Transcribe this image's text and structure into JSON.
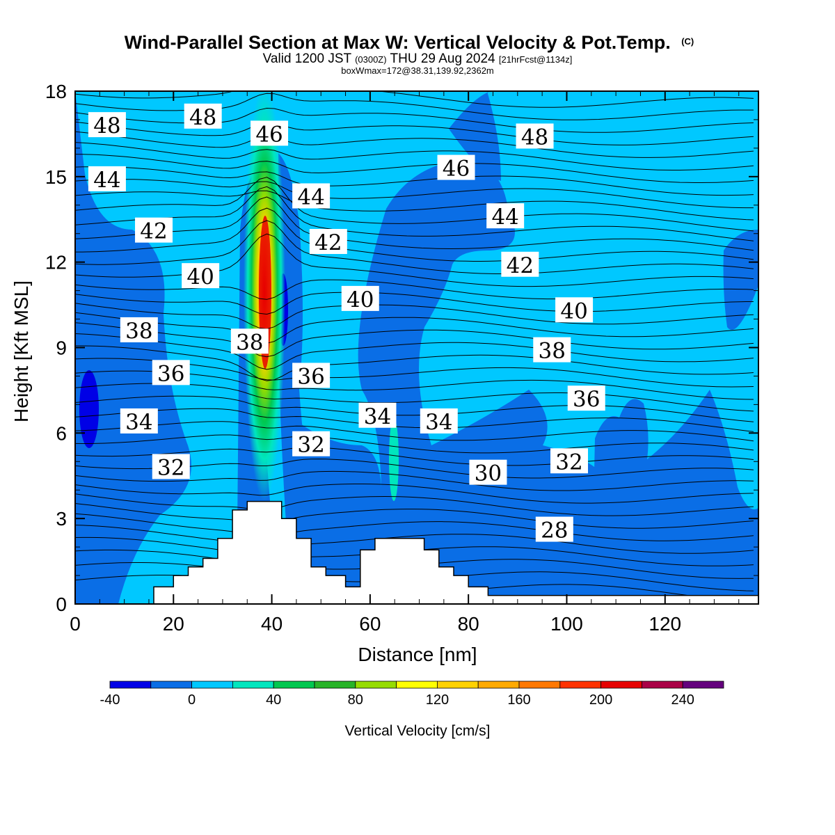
{
  "chart_data": {
    "type": "heatmap",
    "title": "Wind-Parallel Section at Max W: Vertical Velocity & Pot.Temp.",
    "title_mark": "(C)",
    "subtitle_parts": [
      "Valid 1200 JST",
      "(0300Z)",
      "THU 29 Aug 2024",
      "[21hrFcst@1134z]"
    ],
    "info": "boxWmax=172@38.31,139.92,2362m",
    "xlabel": "Distance [nm]",
    "ylabel": "Height [Kft MSL]",
    "xlim": [
      0,
      139
    ],
    "ylim": [
      0,
      18
    ],
    "xticks": [
      0,
      20,
      40,
      60,
      80,
      100,
      120
    ],
    "yticks": [
      0,
      3,
      6,
      9,
      12,
      15,
      18
    ],
    "colorbar": {
      "label": "Vertical Velocity [cm/s]",
      "levels": [
        -40,
        -20,
        0,
        20,
        40,
        60,
        80,
        100,
        120,
        140,
        160,
        180,
        200,
        220,
        240,
        260
      ],
      "colors": [
        "#0000e6",
        "#0a6ee6",
        "#00c8ff",
        "#00e6be",
        "#00c850",
        "#28b428",
        "#96dc00",
        "#ffff00",
        "#ffd200",
        "#ffaa00",
        "#ff7800",
        "#ff3200",
        "#e60000",
        "#aa0046",
        "#64007d"
      ],
      "tick_labels": [
        -40,
        0,
        40,
        80,
        120,
        160,
        200,
        240
      ]
    },
    "terrain": [
      [
        0,
        0
      ],
      [
        16,
        0
      ],
      [
        16,
        0.6
      ],
      [
        20,
        0.6
      ],
      [
        20,
        1
      ],
      [
        23,
        1
      ],
      [
        23,
        1.3
      ],
      [
        26,
        1.3
      ],
      [
        26,
        1.6
      ],
      [
        29,
        1.6
      ],
      [
        29,
        2.3
      ],
      [
        32,
        2.3
      ],
      [
        32,
        3.3
      ],
      [
        35,
        3.3
      ],
      [
        35,
        3.6
      ],
      [
        42,
        3.6
      ],
      [
        42,
        3
      ],
      [
        45,
        3
      ],
      [
        45,
        2.3
      ],
      [
        48,
        2.3
      ],
      [
        48,
        1.3
      ],
      [
        51,
        1.3
      ],
      [
        51,
        1
      ],
      [
        55,
        1
      ],
      [
        55,
        0.6
      ],
      [
        58,
        0.6
      ],
      [
        58,
        1.9
      ],
      [
        61,
        1.9
      ],
      [
        61,
        2.3
      ],
      [
        71,
        2.3
      ],
      [
        71,
        1.9
      ],
      [
        74,
        1.9
      ],
      [
        74,
        1.3
      ],
      [
        77,
        1.3
      ],
      [
        77,
        1
      ],
      [
        80,
        1
      ],
      [
        80,
        0.6
      ],
      [
        84,
        0.6
      ],
      [
        84,
        0.3
      ],
      [
        139,
        0.3
      ],
      [
        139,
        0
      ]
    ],
    "theta_contours": {
      "units": "Pot.Temp.",
      "labels": [
        {
          "text": "48",
          "x": 6.5,
          "y": 16.8
        },
        {
          "text": "48",
          "x": 26,
          "y": 17.1
        },
        {
          "text": "46",
          "x": 39.5,
          "y": 16.5
        },
        {
          "text": "48",
          "x": 93.5,
          "y": 16.4
        },
        {
          "text": "44",
          "x": 6.5,
          "y": 14.9
        },
        {
          "text": "44",
          "x": 48,
          "y": 14.3
        },
        {
          "text": "46",
          "x": 77.5,
          "y": 15.3
        },
        {
          "text": "42",
          "x": 16,
          "y": 13.1
        },
        {
          "text": "44",
          "x": 87.5,
          "y": 13.6
        },
        {
          "text": "42",
          "x": 51.5,
          "y": 12.7
        },
        {
          "text": "42",
          "x": 90.5,
          "y": 11.9
        },
        {
          "text": "40",
          "x": 25.5,
          "y": 11.5
        },
        {
          "text": "40",
          "x": 58,
          "y": 10.7
        },
        {
          "text": "40",
          "x": 101.5,
          "y": 10.3
        },
        {
          "text": "38",
          "x": 13,
          "y": 9.6
        },
        {
          "text": "38",
          "x": 35.5,
          "y": 9.2
        },
        {
          "text": "38",
          "x": 97,
          "y": 8.9
        },
        {
          "text": "36",
          "x": 19.5,
          "y": 8.1
        },
        {
          "text": "36",
          "x": 48,
          "y": 8.0
        },
        {
          "text": "36",
          "x": 104,
          "y": 7.2
        },
        {
          "text": "34",
          "x": 13,
          "y": 6.4
        },
        {
          "text": "34",
          "x": 61.5,
          "y": 6.6
        },
        {
          "text": "34",
          "x": 74,
          "y": 6.4
        },
        {
          "text": "32",
          "x": 19.5,
          "y": 4.8
        },
        {
          "text": "32",
          "x": 48,
          "y": 5.6
        },
        {
          "text": "32",
          "x": 100.5,
          "y": 5.0
        },
        {
          "text": "30",
          "x": 84,
          "y": 4.6
        },
        {
          "text": "28",
          "x": 97.5,
          "y": 2.6
        }
      ]
    }
  }
}
